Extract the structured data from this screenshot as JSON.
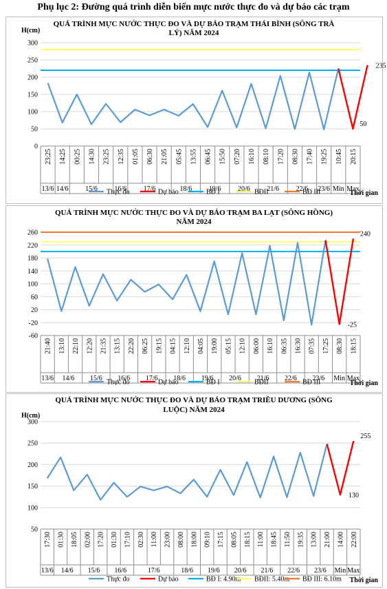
{
  "page_title": "Phụ lục 2: Đường quá trình diễn biến mực nước thực đo và dự báo các trạm",
  "colors": {
    "observed": "#5b9bd5",
    "forecast": "#ff0000",
    "bd1": "#00b0f0",
    "bd2": "#ffff66",
    "bd3": "#f07b2c"
  },
  "chart_data": [
    {
      "type": "line",
      "title_lines": [
        "QUÁ TRÌNH MỰC NƯỚC THỰC ĐO VÀ DỰ BÁO TRẠM THÁI BÌNH (SÔNG TRÀ",
        "LÝ) NĂM 2024"
      ],
      "ylabel": "H(cm)",
      "xlabel": "Thời gian",
      "ylim": [
        0,
        300
      ],
      "yticks": [
        0,
        50,
        100,
        150,
        200,
        250,
        300
      ],
      "x": [
        "23:25",
        "14:25",
        "00:25",
        "14:30",
        "23:25",
        "12:35",
        "01:05",
        "06:30",
        "21:05",
        "05:45",
        "13:55",
        "06:45",
        "15:50",
        "07:20",
        "16:10",
        "08:10",
        "17:20",
        "08:30",
        "17:40",
        "19:25",
        "10:45",
        "20:15"
      ],
      "groups": [
        {
          "label": "13/6",
          "span": 1
        },
        {
          "label": "14/6",
          "span": 1
        },
        {
          "label": "15/6",
          "span": 3
        },
        {
          "label": "16/6",
          "span": 1
        },
        {
          "label": "17/6",
          "span": 3
        },
        {
          "label": "18/6",
          "span": 2
        },
        {
          "label": "19/6",
          "span": 2
        },
        {
          "label": "20/6",
          "span": 2
        },
        {
          "label": "21/6",
          "span": 2
        },
        {
          "label": "22/6",
          "span": 2
        },
        {
          "label": "23/6",
          "span": 1
        },
        {
          "label": "Min",
          "span": 1
        },
        {
          "label": "Max",
          "span": 1
        }
      ],
      "observed": [
        183,
        68,
        150,
        63,
        123,
        69,
        106,
        89,
        106,
        88,
        122,
        55,
        161,
        54,
        181,
        51,
        204,
        49,
        214,
        48,
        225
      ],
      "forecast_x_index": [
        20,
        21,
        22
      ],
      "forecast": [
        225,
        50,
        235
      ],
      "thresholds": {
        "bd1": 220,
        "bd2": 280
      },
      "annotations": [
        {
          "text": "235",
          "x_index": 22,
          "y": 235
        },
        {
          "text": "50",
          "x_index": 21,
          "y": 50
        }
      ],
      "legend": [
        "Thực đo",
        "Dự báo",
        "BĐ I",
        "BĐII",
        "BĐ III"
      ]
    },
    {
      "type": "line",
      "title_lines": [
        "QUÁ TRÌNH MỰC NƯỚC THỰC ĐO VÀ DỰ BÁO TRẠM BA LẠT (SÔNG HỒNG)",
        "NĂM 2024"
      ],
      "ylabel": "",
      "xlabel": "Thời gian",
      "ylim": [
        -60,
        260
      ],
      "yticks": [
        -60,
        -20,
        20,
        60,
        100,
        140,
        180,
        220,
        260
      ],
      "x": [
        "21:40",
        "13:10",
        "22:10",
        "12:20",
        "21:35",
        "13:15",
        "22:20",
        "06:25",
        "19:15",
        "04:15",
        "12:10",
        "04:05",
        "19:00",
        "05:15",
        "12:10",
        "06:00",
        "16:10",
        "06:35",
        "16:30",
        "07:35",
        "17:25",
        "08:30",
        "18:15"
      ],
      "groups": [
        {
          "label": "13/6",
          "span": 1
        },
        {
          "label": "14/6",
          "span": 2
        },
        {
          "label": "15/6",
          "span": 2
        },
        {
          "label": "16/6",
          "span": 2
        },
        {
          "label": "17/6",
          "span": 2
        },
        {
          "label": "18/6",
          "span": 2
        },
        {
          "label": "19/6",
          "span": 2
        },
        {
          "label": "20/6",
          "span": 2
        },
        {
          "label": "21/6",
          "span": 2
        },
        {
          "label": "22/6",
          "span": 2
        },
        {
          "label": "23/6",
          "span": 2
        },
        {
          "label": "Min",
          "span": 1
        },
        {
          "label": "Max",
          "span": 1
        }
      ],
      "observed": [
        178,
        15,
        152,
        32,
        130,
        48,
        113,
        75,
        98,
        52,
        128,
        15,
        170,
        5,
        195,
        5,
        218,
        -13,
        227,
        -27,
        235
      ],
      "forecast_x_index": [
        20,
        21,
        22
      ],
      "forecast": [
        235,
        -25,
        240
      ],
      "thresholds": {
        "bd1": 200,
        "bd2": 230,
        "bd3": 260
      },
      "annotations": [
        {
          "text": "240",
          "x_index": 22,
          "y": 240
        },
        {
          "text": "-25",
          "x_index": 21,
          "y": -25
        }
      ],
      "legend": [
        "Thực đo",
        "Dự báo",
        "BĐ I",
        "BĐII",
        "BĐ III"
      ]
    },
    {
      "type": "line",
      "title_lines": [
        "QUÁ TRÌNH MỰC NƯỚC THỰC ĐO VÀ DỰ BÁO TRẠM TRIỀU DƯƠNG (SÔNG",
        "LUỘC) NĂM 2024"
      ],
      "ylabel": "H(cm)",
      "xlabel": "Thời gian",
      "ylim": [
        50,
        300
      ],
      "yticks": [
        50,
        100,
        150,
        200,
        250,
        300
      ],
      "x": [
        "17:30",
        "01:30",
        "18:05",
        "02:00",
        "17:20",
        "01:30",
        "17:10",
        "02:30",
        "11:00",
        "23:00",
        "08:00",
        "18:00",
        "09:10",
        "17:15",
        "08:05",
        "18:15",
        "11:00",
        "18:45",
        "11:50",
        "19:35",
        "13:00",
        "21:00",
        "14:00",
        "22:00"
      ],
      "groups": [
        {
          "label": "13/6",
          "span": 1
        },
        {
          "label": "14/6",
          "span": 2
        },
        {
          "label": "15/6",
          "span": 2
        },
        {
          "label": "16/6",
          "span": 2
        },
        {
          "label": "17/6",
          "span": 3
        },
        {
          "label": "18/6",
          "span": 2
        },
        {
          "label": "19/6",
          "span": 2
        },
        {
          "label": "20/6",
          "span": 2
        },
        {
          "label": "21/6",
          "span": 2
        },
        {
          "label": "22/6",
          "span": 2
        },
        {
          "label": "23/6",
          "span": 2
        },
        {
          "label": "Min",
          "span": 1
        },
        {
          "label": "Max",
          "span": 1
        }
      ],
      "observed": [
        168,
        217,
        140,
        177,
        118,
        158,
        125,
        149,
        140,
        149,
        133,
        165,
        125,
        188,
        129,
        206,
        123,
        219,
        124,
        228,
        127,
        248
      ],
      "forecast_x_index": [
        21,
        22,
        23
      ],
      "forecast": [
        248,
        130,
        255
      ],
      "thresholds": {},
      "annotations": [
        {
          "text": "255",
          "x_index": 23,
          "y": 255
        },
        {
          "text": "130",
          "x_index": 22,
          "y": 130
        }
      ],
      "legend": [
        "Thực đo",
        "Dự báo",
        "BĐ I: 4.90m",
        "BĐII: 5.40m",
        "BĐ III: 6.10m"
      ]
    }
  ]
}
